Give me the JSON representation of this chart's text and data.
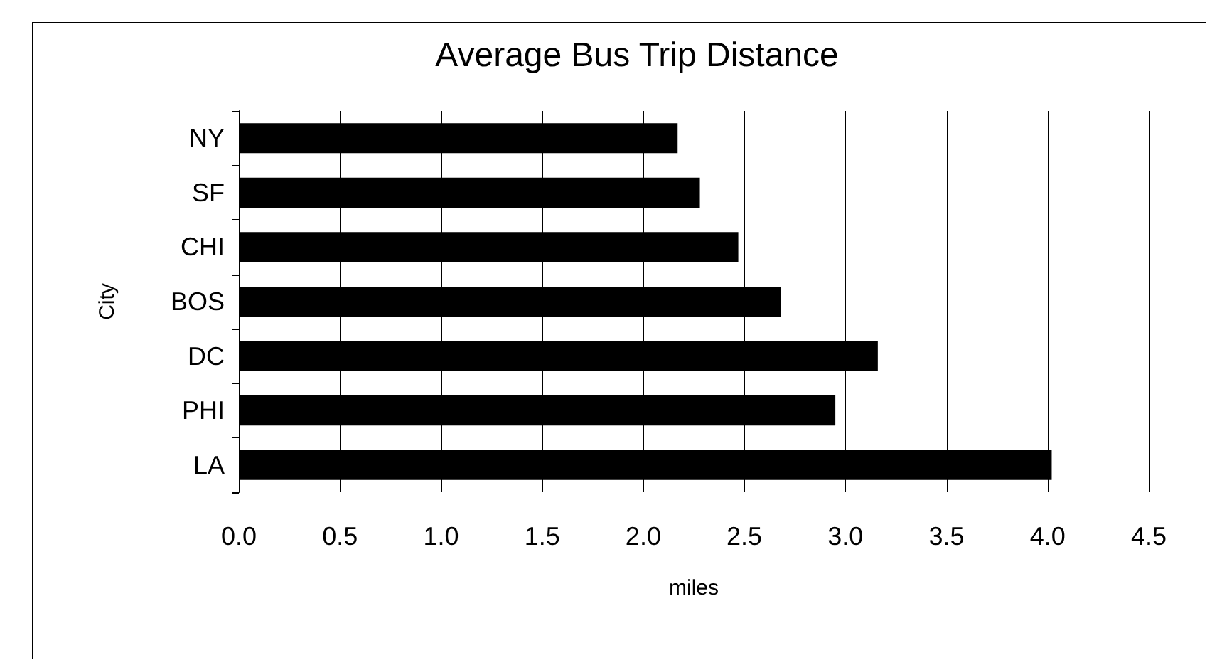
{
  "chart_data": {
    "type": "bar",
    "orientation": "horizontal",
    "title": "Average Bus Trip Distance",
    "xlabel": "miles",
    "ylabel": "City",
    "categories": [
      "NY",
      "SF",
      "CHI",
      "BOS",
      "DC",
      "PHI",
      "LA"
    ],
    "values": [
      2.17,
      2.28,
      2.47,
      2.68,
      3.16,
      2.95,
      4.02
    ],
    "color": "#000000",
    "xlim": [
      0,
      4.5
    ],
    "xticks": [
      {
        "value": 0,
        "label": "0.0"
      },
      {
        "value": 0.5,
        "label": "0.5"
      },
      {
        "value": 1,
        "label": "1.0"
      },
      {
        "value": 1.5,
        "label": "1.5"
      },
      {
        "value": 2,
        "label": "2.0"
      },
      {
        "value": 2.5,
        "label": "2.5"
      },
      {
        "value": 3,
        "label": "3.0"
      },
      {
        "value": 3.5,
        "label": "3.5"
      },
      {
        "value": 4,
        "label": "4.0"
      },
      {
        "value": 4.5,
        "label": "4.5"
      }
    ],
    "grid": "x"
  }
}
